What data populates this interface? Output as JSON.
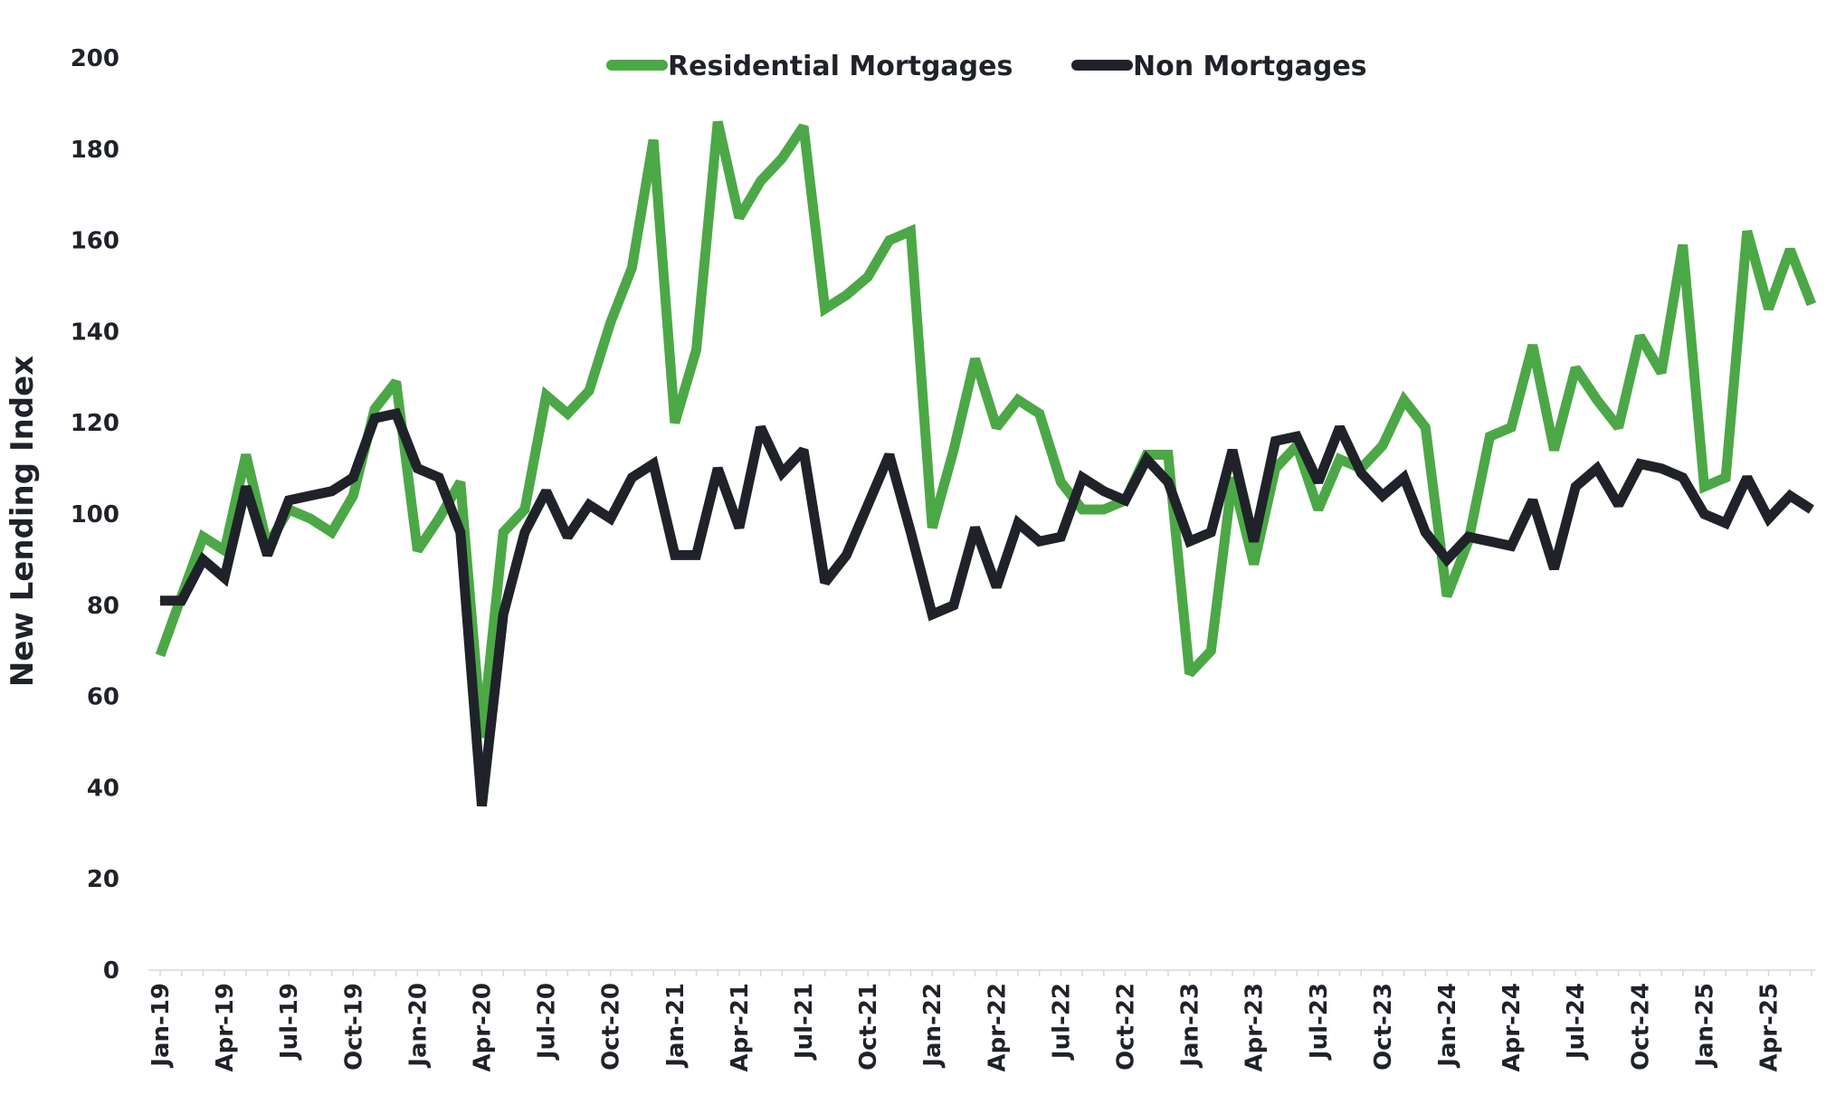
{
  "chart_data": {
    "type": "line",
    "title": "",
    "xlabel": "",
    "ylabel": "New Lending Index",
    "ylim": [
      0,
      200
    ],
    "yticks": [
      0,
      20,
      40,
      60,
      80,
      100,
      120,
      140,
      160,
      180,
      200
    ],
    "grid": false,
    "legend_position": "top-center",
    "x_tick_labels": [
      "Jan-19",
      "Apr-19",
      "Jul-19",
      "Oct-19",
      "Jan-20",
      "Apr-20",
      "Jul-20",
      "Oct-20",
      "Jan-21",
      "Apr-21",
      "Jul-21",
      "Oct-21",
      "Jan-22",
      "Apr-22",
      "Jul-22",
      "Oct-22",
      "Jan-23",
      "Apr-23",
      "Jul-23",
      "Oct-23",
      "Jan-24",
      "Apr-24",
      "Jul-24",
      "Oct-24",
      "Jan-25",
      "Apr-25"
    ],
    "x": [
      "2019-01",
      "2019-02",
      "2019-03",
      "2019-04",
      "2019-05",
      "2019-06",
      "2019-07",
      "2019-08",
      "2019-09",
      "2019-10",
      "2019-11",
      "2019-12",
      "2020-01",
      "2020-02",
      "2020-03",
      "2020-04",
      "2020-05",
      "2020-06",
      "2020-07",
      "2020-08",
      "2020-09",
      "2020-10",
      "2020-11",
      "2020-12",
      "2021-01",
      "2021-02",
      "2021-03",
      "2021-04",
      "2021-05",
      "2021-06",
      "2021-07",
      "2021-08",
      "2021-09",
      "2021-10",
      "2021-11",
      "2021-12",
      "2022-01",
      "2022-02",
      "2022-03",
      "2022-04",
      "2022-05",
      "2022-06",
      "2022-07",
      "2022-08",
      "2022-09",
      "2022-10",
      "2022-11",
      "2022-12",
      "2023-01",
      "2023-02",
      "2023-03",
      "2023-04",
      "2023-05",
      "2023-06",
      "2023-07",
      "2023-08",
      "2023-09",
      "2023-10",
      "2023-11",
      "2023-12",
      "2024-01",
      "2024-02",
      "2024-03",
      "2024-04",
      "2024-05",
      "2024-06",
      "2024-07",
      "2024-08",
      "2024-09",
      "2024-10",
      "2024-11",
      "2024-12",
      "2025-01",
      "2025-02",
      "2025-03",
      "2025-04",
      "2025-05",
      "2025-06"
    ],
    "series": [
      {
        "name": "Residential Mortgages",
        "color": "#4ca846",
        "values": [
          69,
          82,
          95,
          92,
          113,
          93,
          101,
          99,
          96,
          104,
          123,
          129,
          92,
          99,
          107,
          51,
          96,
          101,
          126,
          122,
          127,
          142,
          154,
          182,
          120,
          136,
          186,
          165,
          173,
          178,
          185,
          145,
          148,
          152,
          160,
          162,
          97,
          114,
          134,
          119,
          125,
          122,
          107,
          101,
          101,
          103,
          113,
          113,
          65,
          70,
          108,
          89,
          110,
          115,
          101,
          112,
          110,
          115,
          125,
          119,
          82,
          94,
          117,
          119,
          137,
          114,
          132,
          125,
          119,
          139,
          131,
          159,
          106,
          108,
          162,
          145,
          158,
          146
        ]
      },
      {
        "name": "Non Mortgages",
        "color": "#1f2329",
        "values": [
          81,
          81,
          90,
          86,
          106,
          91,
          103,
          104,
          105,
          108,
          121,
          122,
          110,
          108,
          96,
          36,
          78,
          96,
          105,
          95,
          102,
          99,
          108,
          111,
          91,
          91,
          110,
          97,
          119,
          109,
          114,
          85,
          91,
          102,
          113,
          96,
          78,
          80,
          97,
          84,
          98,
          94,
          95,
          108,
          105,
          103,
          112,
          107,
          94,
          96,
          114,
          94,
          116,
          117,
          107,
          119,
          109,
          104,
          108,
          96,
          90,
          95,
          94,
          93,
          103,
          88,
          106,
          110,
          102,
          111,
          110,
          108,
          100,
          98,
          108,
          99,
          104,
          101
        ]
      }
    ]
  }
}
